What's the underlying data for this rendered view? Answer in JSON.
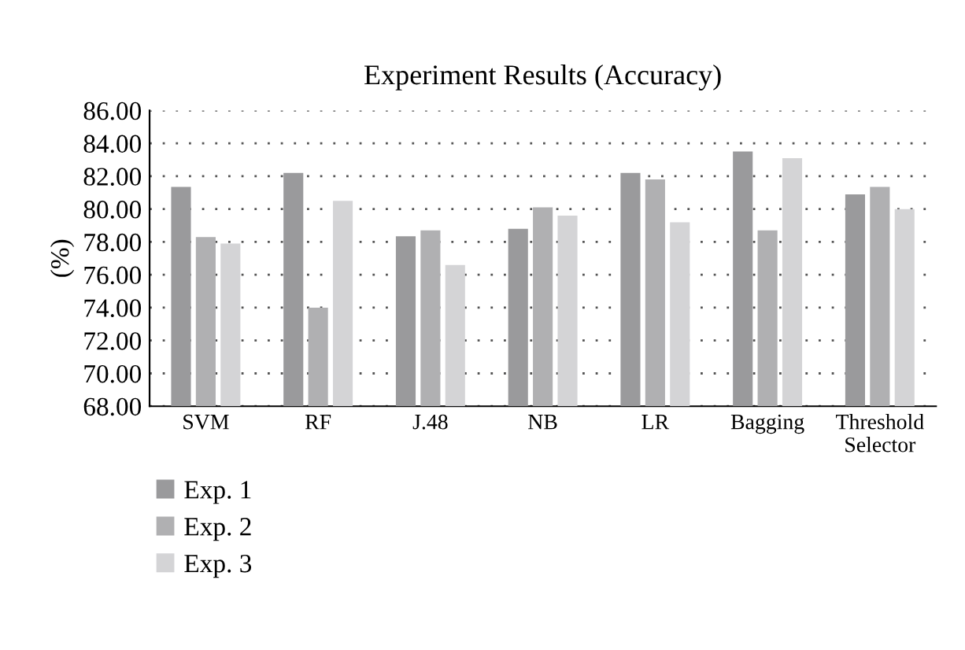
{
  "chart_data": {
    "type": "bar",
    "title": "Experiment Results (Accuracy)",
    "ylabel": "(%)",
    "categories": [
      "SVM",
      "RF",
      "J.48",
      "NB",
      "LR",
      "Bagging",
      "Threshold\nSelector"
    ],
    "series": [
      {
        "name": "Exp. 1",
        "color": "#9a9a9c",
        "values": [
          81.35,
          82.2,
          78.35,
          78.8,
          82.2,
          83.5,
          80.9
        ]
      },
      {
        "name": "Exp. 2",
        "color": "#b0b0b2",
        "values": [
          78.3,
          74.0,
          78.7,
          80.1,
          81.8,
          78.7,
          81.35
        ]
      },
      {
        "name": "Exp. 3",
        "color": "#d4d4d6",
        "values": [
          77.9,
          80.5,
          76.6,
          79.6,
          79.2,
          83.1,
          80.0
        ]
      }
    ],
    "ylim": [
      68,
      86
    ],
    "yticks": [
      {
        "value": 68,
        "label": "68.00"
      },
      {
        "value": 70,
        "label": "70.00"
      },
      {
        "value": 72,
        "label": "72.00"
      },
      {
        "value": 74,
        "label": "74.00"
      },
      {
        "value": 76,
        "label": "76.00"
      },
      {
        "value": 78,
        "label": "78.00"
      },
      {
        "value": 80,
        "label": "80.00"
      },
      {
        "value": 82,
        "label": "82.00"
      },
      {
        "value": 84,
        "label": "84.00"
      },
      {
        "value": 86,
        "label": "86.00"
      }
    ],
    "grid": "y",
    "legend": "bottom left"
  }
}
